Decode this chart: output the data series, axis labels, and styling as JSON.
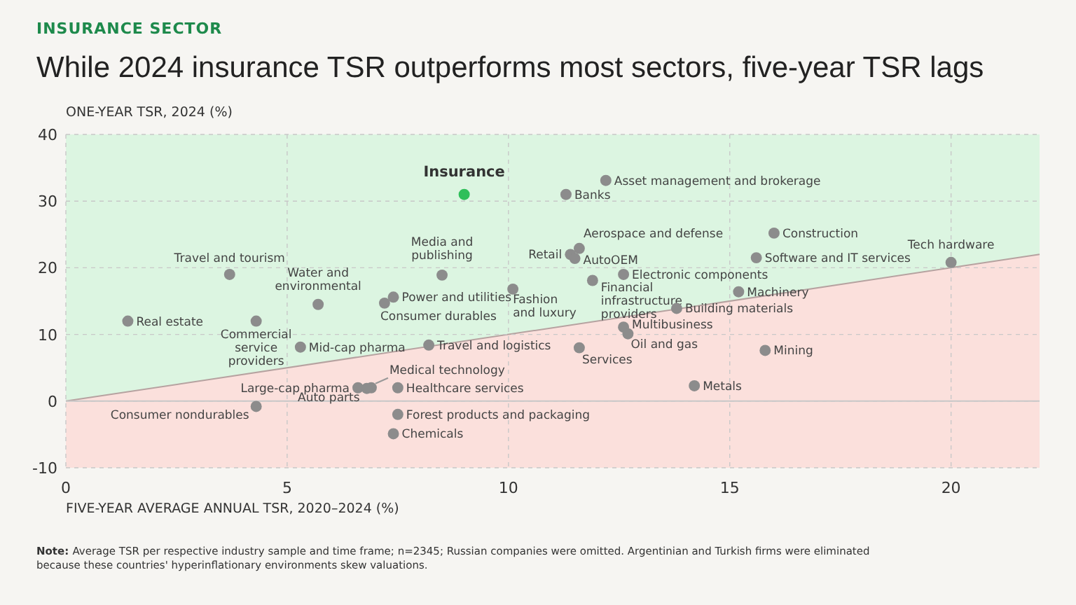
{
  "chart_data": {
    "type": "scatter",
    "subtitle": "INSURANCE SECTOR",
    "title": "While 2024 insurance TSR outperforms most sectors, five-year TSR lags",
    "ylabel": "ONE-YEAR TSR, 2024 (%)",
    "xlabel": "FIVE-YEAR AVERAGE ANNUAL TSR, 2020–2024 (%)",
    "xlim": [
      0,
      22
    ],
    "ylim": [
      -10,
      40
    ],
    "xticks": [
      0,
      5,
      10,
      15,
      20
    ],
    "yticks": [
      -10,
      0,
      10,
      20,
      30,
      40
    ],
    "grid": true,
    "legend": false,
    "marker": "circle",
    "ref_lines": [
      {
        "axis": "y",
        "value": 0,
        "color": "#c8c8c8"
      }
    ],
    "bands": [
      {
        "axis": "y",
        "from": -10,
        "to": 0,
        "color": "#fbe0dc"
      }
    ],
    "annotations": [
      "Note: Average TSR per respective industry sample and time frame; n=2345; Russian companies were omitted. Argentinian and Turkish firms were eliminated because these countries' hyperinflationary environments skew valuations."
    ],
    "series": [
      {
        "type": "area",
        "marker": "none",
        "color": "#fbe0dc",
        "x": [
          0,
          22
        ],
        "values": [
          0,
          22
        ]
      },
      {
        "name": "Insurance",
        "color": "#2fbf5a",
        "x": [
          9.0
        ],
        "values": [
          31
        ]
      },
      {
        "name": "Asset management and brokerage",
        "color": "#8c8c8c",
        "x": [
          12.2
        ],
        "values": [
          33.1
        ]
      },
      {
        "name": "Banks",
        "color": "#8c8c8c",
        "x": [
          11.3
        ],
        "values": [
          31
        ]
      },
      {
        "name": "Aerospace and defense",
        "color": "#8c8c8c",
        "x": [
          11.6
        ],
        "values": [
          22.9
        ]
      },
      {
        "name": "Retail",
        "color": "#8c8c8c",
        "x": [
          11.4
        ],
        "values": [
          22
        ]
      },
      {
        "name": "AutoOEM",
        "color": "#8c8c8c",
        "x": [
          11.5
        ],
        "values": [
          21.4
        ]
      },
      {
        "name": "Electronic components",
        "color": "#8c8c8c",
        "x": [
          12.6
        ],
        "values": [
          19
        ]
      },
      {
        "name": "Financial infrastructure providers",
        "color": "#8c8c8c",
        "x": [
          11.9
        ],
        "values": [
          18.1
        ]
      },
      {
        "name": "Construction",
        "color": "#8c8c8c",
        "x": [
          16
        ],
        "values": [
          25.2
        ]
      },
      {
        "name": "Software and IT services",
        "color": "#8c8c8c",
        "x": [
          15.6
        ],
        "values": [
          21.5
        ]
      },
      {
        "name": "Tech hardware",
        "color": "#8c8c8c",
        "x": [
          20
        ],
        "values": [
          20.8
        ]
      },
      {
        "name": "Machinery",
        "color": "#8c8c8c",
        "x": [
          15.2
        ],
        "values": [
          16.4
        ]
      },
      {
        "name": "Building materials",
        "color": "#8c8c8c",
        "x": [
          13.8
        ],
        "values": [
          13.9
        ]
      },
      {
        "name": "Multibusiness",
        "color": "#8c8c8c",
        "x": [
          12.6
        ],
        "values": [
          11.1
        ]
      },
      {
        "name": "Oil and gas",
        "color": "#8c8c8c",
        "x": [
          12.7
        ],
        "values": [
          10.1
        ]
      },
      {
        "name": "Services",
        "color": "#8c8c8c",
        "x": [
          11.6
        ],
        "values": [
          8
        ]
      },
      {
        "name": "Mining",
        "color": "#8c8c8c",
        "x": [
          15.8
        ],
        "values": [
          7.6
        ]
      },
      {
        "name": "Metals",
        "color": "#8c8c8c",
        "x": [
          14.2
        ],
        "values": [
          2.3
        ]
      },
      {
        "name": "Travel and tourism",
        "color": "#8c8c8c",
        "x": [
          3.7
        ],
        "values": [
          19
        ]
      },
      {
        "name": "Real estate",
        "color": "#8c8c8c",
        "x": [
          1.4
        ],
        "values": [
          12
        ]
      },
      {
        "name": "Commercial service providers",
        "color": "#8c8c8c",
        "x": [
          4.3
        ],
        "values": [
          12
        ]
      },
      {
        "name": "Water and environmental",
        "color": "#8c8c8c",
        "x": [
          5.7
        ],
        "values": [
          14.5
        ]
      },
      {
        "name": "Consumer durables",
        "color": "#8c8c8c",
        "x": [
          7.2
        ],
        "values": [
          14.7
        ]
      },
      {
        "name": "Power and utilities",
        "color": "#8c8c8c",
        "x": [
          7.4
        ],
        "values": [
          15.6
        ]
      },
      {
        "name": "Media and publishing",
        "color": "#8c8c8c",
        "x": [
          8.5
        ],
        "values": [
          18.9
        ]
      },
      {
        "name": "Fashion and luxury",
        "color": "#8c8c8c",
        "x": [
          10.1
        ],
        "values": [
          16.8
        ]
      },
      {
        "name": "Mid-cap pharma",
        "color": "#8c8c8c",
        "x": [
          5.3
        ],
        "values": [
          8.1
        ]
      },
      {
        "name": "Travel and logistics",
        "color": "#8c8c8c",
        "x": [
          8.2
        ],
        "values": [
          8.4
        ]
      },
      {
        "name": "Large-cap pharma",
        "color": "#8c8c8c",
        "x": [
          6.6
        ],
        "values": [
          2
        ]
      },
      {
        "name": "Medical technology",
        "color": "#8c8c8c",
        "x": [
          6.9
        ],
        "values": [
          2
        ]
      },
      {
        "name": "Auto parts",
        "color": "#8c8c8c",
        "x": [
          6.8
        ],
        "values": [
          1.9
        ]
      },
      {
        "name": "Healthcare services",
        "color": "#8c8c8c",
        "x": [
          7.5
        ],
        "values": [
          2
        ]
      },
      {
        "name": "Consumer nondurables",
        "color": "#8c8c8c",
        "x": [
          4.3
        ],
        "values": [
          -0.8
        ]
      },
      {
        "name": "Forest products and packaging",
        "color": "#8c8c8c",
        "x": [
          7.5
        ],
        "values": [
          -2
        ]
      },
      {
        "name": "Chemicals",
        "color": "#8c8c8c",
        "x": [
          7.4
        ],
        "values": [
          -4.9
        ]
      }
    ]
  }
}
